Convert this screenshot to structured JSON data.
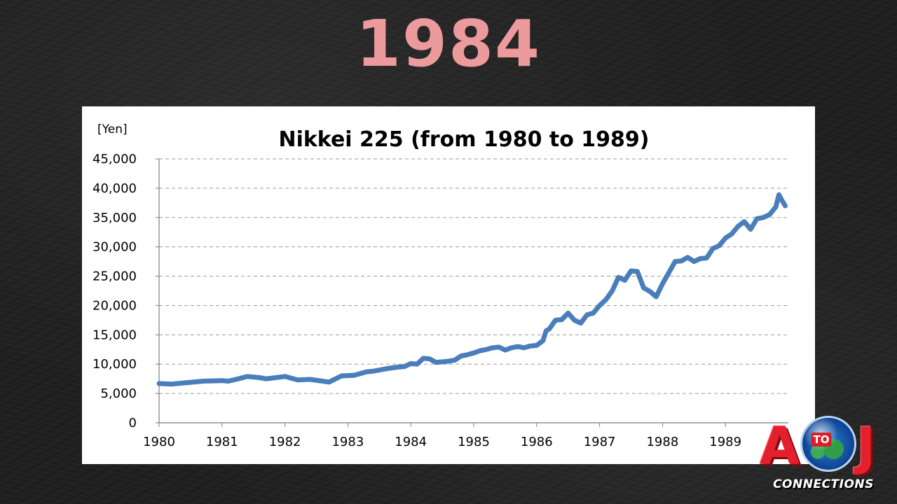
{
  "slide": {
    "title": "1984"
  },
  "colors": {
    "title": "#ec9a9c",
    "line": "#4a7ebb",
    "background": "#202020"
  },
  "chart_data": {
    "type": "line",
    "title": "Nikkei 225 (from 1980 to 1989)",
    "unit_label": "[Yen]",
    "xlabel": "",
    "ylabel": "",
    "xlim": [
      1980,
      1990
    ],
    "ylim": [
      0,
      45000
    ],
    "y_ticks": [
      0,
      5000,
      10000,
      15000,
      20000,
      25000,
      30000,
      35000,
      40000,
      45000
    ],
    "y_tick_labels": [
      "0",
      "5,000",
      "10,000",
      "15,000",
      "20,000",
      "25,000",
      "30,000",
      "35,000",
      "40,000",
      "45,000"
    ],
    "x_ticks": [
      1980,
      1981,
      1982,
      1983,
      1984,
      1985,
      1986,
      1987,
      1988,
      1989
    ],
    "x_tick_labels": [
      "1980",
      "1981",
      "1982",
      "1983",
      "1984",
      "1985",
      "1986",
      "1987",
      "1988",
      "1989"
    ],
    "grid": "horizontal dashed",
    "legend": "none",
    "series": [
      {
        "x": [
          1980.0,
          1980.2,
          1980.4,
          1980.7,
          1981.0,
          1981.1,
          1981.3,
          1981.4,
          1981.6,
          1981.7,
          1982.0,
          1982.2,
          1982.4,
          1982.6,
          1982.7,
          1982.9,
          1983.1,
          1983.3,
          1983.4,
          1983.6,
          1983.8,
          1983.9,
          1984.0,
          1984.1,
          1984.2,
          1984.3,
          1984.4,
          1984.5,
          1984.6,
          1984.7,
          1984.8,
          1984.9,
          1985.0,
          1985.1,
          1985.2,
          1985.3,
          1985.4,
          1985.5,
          1985.6,
          1985.7,
          1985.8,
          1985.9,
          1986.0,
          1986.1,
          1986.15,
          1986.2,
          1986.3,
          1986.4,
          1986.5,
          1986.6,
          1986.7,
          1986.8,
          1986.9,
          1987.0,
          1987.1,
          1987.2,
          1987.3,
          1987.4,
          1987.5,
          1987.6,
          1987.7,
          1987.8,
          1987.9,
          1988.0,
          1988.1,
          1988.2,
          1988.3,
          1988.4,
          1988.5,
          1988.6,
          1988.7,
          1988.8,
          1988.9,
          1989.0,
          1989.1,
          1989.2,
          1989.3,
          1989.4,
          1989.5,
          1989.6,
          1989.7,
          1989.8,
          1989.85,
          1989.9,
          1989.95
        ],
        "values": [
          6700,
          6600,
          6800,
          7100,
          7200,
          7100,
          7600,
          7900,
          7700,
          7500,
          7900,
          7300,
          7400,
          7100,
          6950,
          8000,
          8100,
          8700,
          8800,
          9200,
          9500,
          9600,
          10100,
          10000,
          11000,
          10900,
          10300,
          10400,
          10500,
          10700,
          11400,
          11600,
          11900,
          12300,
          12500,
          12800,
          12900,
          12400,
          12800,
          13000,
          12800,
          13100,
          13200,
          14000,
          15700,
          16000,
          17500,
          17600,
          18700,
          17500,
          17000,
          18400,
          18700,
          20000,
          21000,
          22500,
          24800,
          24300,
          25900,
          25800,
          23000,
          22400,
          21500,
          23700,
          25600,
          27500,
          27600,
          28200,
          27500,
          28000,
          28100,
          29700,
          30200,
          31500,
          32200,
          33500,
          34300,
          33000,
          34800,
          35000,
          35500,
          36800,
          38900,
          37900,
          37000
        ]
      }
    ]
  }
}
